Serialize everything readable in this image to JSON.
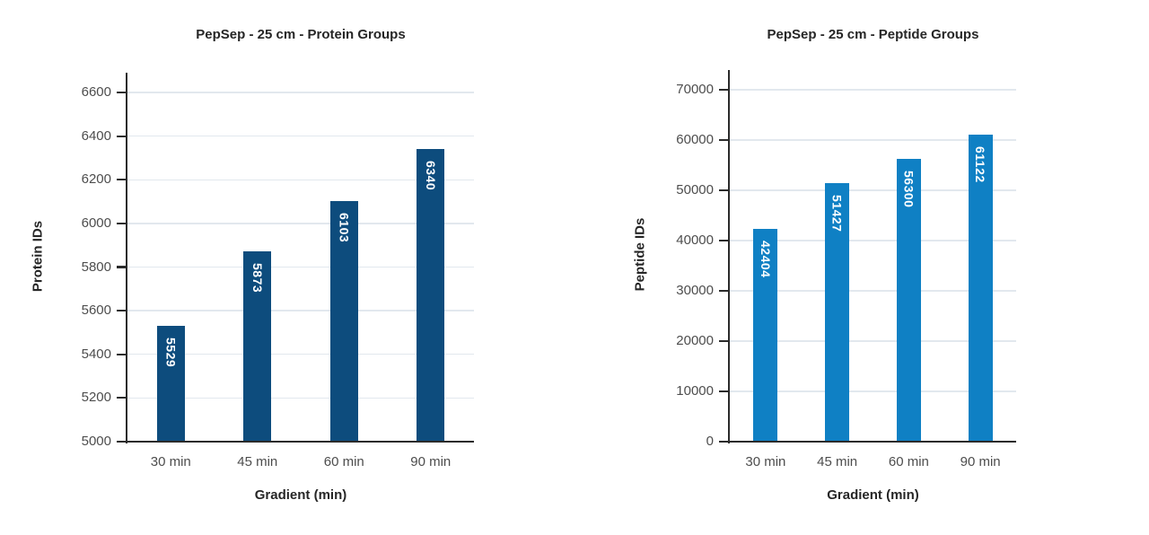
{
  "figure": {
    "background": "#ffffff"
  },
  "style": {
    "grid_color": "#e2e8ee",
    "axis_color": "#2b2b2b",
    "title_color": "#262626",
    "tick_label_color": "#4d4d4d",
    "data_label_color": "#ffffff"
  },
  "chart_data": [
    {
      "type": "bar",
      "title": "PepSep - 25 cm - Protein Groups",
      "xlabel": "Gradient (min)",
      "ylabel": "Protein IDs",
      "categories": [
        "30 min",
        "45 min",
        "60 min",
        "90 min"
      ],
      "values": [
        5529,
        5873,
        6103,
        6340
      ],
      "data_labels": [
        "5529",
        "5873",
        "6103",
        "6340"
      ],
      "data_label_position": "inside-end-vertical",
      "ylim": [
        5000,
        6600
      ],
      "ytick_step": 200,
      "yticks": [
        5000,
        5200,
        5400,
        5600,
        5800,
        6000,
        6200,
        6400,
        6600
      ],
      "grid": true,
      "legend": false,
      "bar_color": "#0d4c7d"
    },
    {
      "type": "bar",
      "title": "PepSep - 25 cm - Peptide Groups",
      "xlabel": "Gradient (min)",
      "ylabel": "Peptide IDs",
      "categories": [
        "30 min",
        "45 min",
        "60 min",
        "90 min"
      ],
      "values": [
        42404,
        51427,
        56300,
        61122
      ],
      "data_labels": [
        "42404",
        "51427",
        "56300",
        "61122"
      ],
      "data_label_position": "inside-end-vertical",
      "ylim": [
        0,
        70000
      ],
      "ytick_step": 10000,
      "yticks": [
        0,
        10000,
        20000,
        30000,
        40000,
        50000,
        60000,
        70000
      ],
      "grid": true,
      "legend": false,
      "bar_color": "#0f80c4"
    }
  ]
}
